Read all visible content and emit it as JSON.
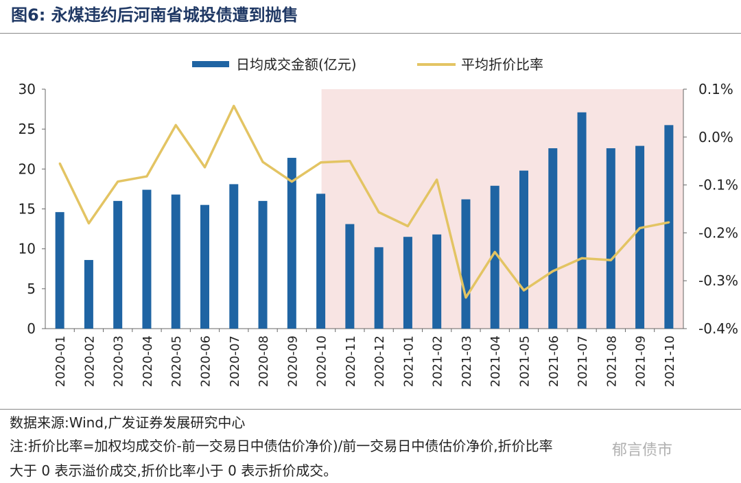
{
  "header": {
    "figure_label": "图6:",
    "title": "永煤违约后河南省城投债遭到抛售"
  },
  "chart_data": {
    "type": "bar+line",
    "categories": [
      "2020-01",
      "2020-02",
      "2020-03",
      "2020-04",
      "2020-05",
      "2020-06",
      "2020-07",
      "2020-08",
      "2020-09",
      "2020-10",
      "2020-11",
      "2020-12",
      "2021-01",
      "2021-02",
      "2021-03",
      "2021-04",
      "2021-05",
      "2021-06",
      "2021-07",
      "2021-08",
      "2021-09",
      "2021-10"
    ],
    "series": [
      {
        "name": "日均成交金额(亿元)",
        "type": "bar",
        "axis": "left",
        "color": "#1f64a3",
        "values": [
          14.6,
          8.6,
          16.0,
          17.4,
          16.8,
          15.5,
          18.1,
          16.0,
          21.4,
          16.9,
          13.1,
          10.2,
          11.5,
          11.8,
          16.2,
          17.9,
          19.8,
          22.6,
          27.1,
          22.6,
          22.9,
          25.5
        ]
      },
      {
        "name": "平均折价比率",
        "type": "line",
        "axis": "right",
        "color": "#e3c463",
        "values": [
          -0.055,
          -0.18,
          -0.093,
          -0.082,
          0.025,
          -0.063,
          0.065,
          -0.052,
          -0.093,
          -0.053,
          -0.05,
          -0.157,
          -0.186,
          -0.089,
          -0.335,
          -0.24,
          -0.32,
          -0.28,
          -0.253,
          -0.257,
          -0.19,
          -0.178
        ]
      }
    ],
    "left_axis": {
      "min": 0,
      "max": 30,
      "ticks": [
        "0",
        "5",
        "10",
        "15",
        "20",
        "25",
        "30"
      ]
    },
    "right_axis": {
      "min": -0.4,
      "max": 0.1,
      "ticks": [
        "-0.4%",
        "-0.3%",
        "-0.2%",
        "-0.1%",
        "0.0%",
        "0.1%"
      ]
    },
    "legend": {
      "bar_label": "日均成交金额(亿元)",
      "line_label": "平均折价比率"
    },
    "highlight": {
      "from": "2020-11",
      "to": "2021-10",
      "color": "#f8e4e3"
    }
  },
  "footer": {
    "source": "数据来源:Wind,广发证券发展研究中心",
    "note_line1": "注:折价比率=加权均成交价-前一交易日中债估价净价)/前一交易日中债估价净价,折价比率",
    "note_line2": "大于 0 表示溢价成交,折价比率小于 0 表示折价成交。"
  },
  "watermark": "郁言债市"
}
